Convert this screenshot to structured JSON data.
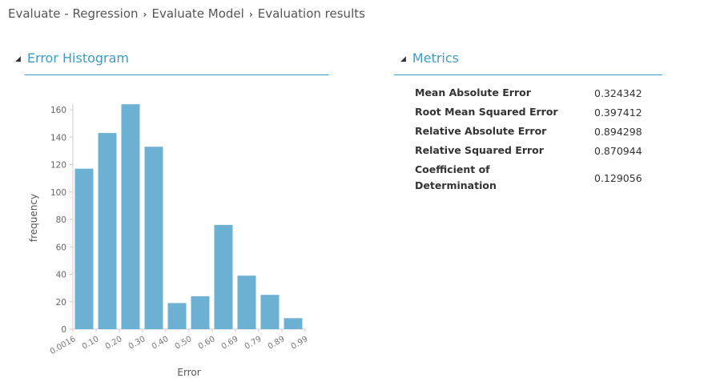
{
  "breadcrumb": [
    "Evaluate - Regression",
    "Evaluate Model",
    "Evaluation results"
  ],
  "histogram_section": {
    "title": "Error Histogram"
  },
  "metrics_section": {
    "title": "Metrics",
    "rows": [
      {
        "label": "Mean Absolute Error",
        "value": "0.324342"
      },
      {
        "label": "Root Mean Squared Error",
        "value": "0.397412"
      },
      {
        "label": "Relative Absolute Error",
        "value": "0.894298"
      },
      {
        "label": "Relative Squared Error",
        "value": "0.870944"
      },
      {
        "label": "Coefficient of Determination",
        "value": "0.129056"
      }
    ]
  },
  "chart_data": {
    "type": "bar",
    "xlabel": "Error",
    "ylabel": "frequency",
    "bin_edges": [
      "0.0016",
      "0.10",
      "0.20",
      "0.30",
      "0.40",
      "0.50",
      "0.60",
      "0.69",
      "0.79",
      "0.89",
      "0.99"
    ],
    "values": [
      117,
      143,
      164,
      133,
      19,
      24,
      76,
      39,
      25,
      8
    ],
    "yticks": [
      0,
      20,
      40,
      60,
      80,
      100,
      120,
      140,
      160
    ],
    "ylim": [
      0,
      164
    ],
    "bar_color": "#6cb0d3"
  }
}
